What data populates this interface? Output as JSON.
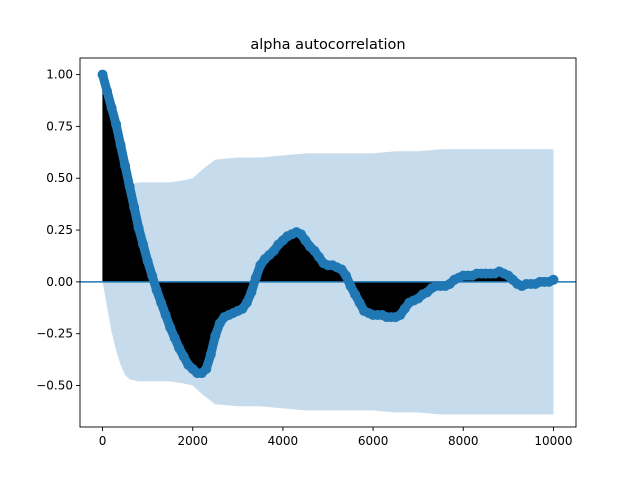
{
  "chart_data": {
    "type": "line",
    "title": "alpha autocorrelation",
    "xlabel": "",
    "ylabel": "",
    "xlim": [
      -500,
      10500
    ],
    "ylim": [
      -0.7,
      1.08
    ],
    "xticks": [
      0,
      2000,
      4000,
      6000,
      8000,
      10000
    ],
    "xtick_labels": [
      "0",
      "2000",
      "4000",
      "6000",
      "8000",
      "10000"
    ],
    "yticks": [
      -0.5,
      -0.25,
      0.0,
      0.25,
      0.5,
      0.75,
      1.0
    ],
    "ytick_labels": [
      "−0.50",
      "−0.25",
      "0.00",
      "0.25",
      "0.50",
      "0.75",
      "1.00"
    ],
    "grid": false,
    "colors": {
      "acf_marker": "#1f77b4",
      "zero_line": "#1f77b4",
      "confidence_band": "#c6dbec",
      "stems": "#000000"
    },
    "acf": {
      "x": [
        0,
        100,
        200,
        300,
        400,
        500,
        600,
        700,
        800,
        900,
        1000,
        1100,
        1200,
        1300,
        1400,
        1500,
        1600,
        1700,
        1800,
        1900,
        2000,
        2100,
        2200,
        2300,
        2400,
        2500,
        2600,
        2700,
        2800,
        2900,
        3000,
        3100,
        3200,
        3300,
        3400,
        3500,
        3600,
        3700,
        3800,
        3900,
        4000,
        4100,
        4200,
        4300,
        4400,
        4500,
        4600,
        4700,
        4800,
        4900,
        5000,
        5100,
        5200,
        5300,
        5400,
        5500,
        5600,
        5700,
        5800,
        5900,
        6000,
        6100,
        6200,
        6300,
        6400,
        6500,
        6600,
        6700,
        6800,
        6900,
        7000,
        7100,
        7200,
        7300,
        7400,
        7500,
        7600,
        7700,
        7800,
        7900,
        8000,
        8100,
        8200,
        8300,
        8400,
        8500,
        8600,
        8700,
        8800,
        8900,
        9000,
        9100,
        9200,
        9300,
        9400,
        9500,
        9600,
        9700,
        9800,
        9900,
        10000
      ],
      "values": [
        1.0,
        0.92,
        0.84,
        0.76,
        0.66,
        0.56,
        0.46,
        0.36,
        0.26,
        0.18,
        0.1,
        0.03,
        -0.04,
        -0.1,
        -0.16,
        -0.22,
        -0.27,
        -0.32,
        -0.36,
        -0.4,
        -0.42,
        -0.44,
        -0.44,
        -0.42,
        -0.35,
        -0.26,
        -0.2,
        -0.17,
        -0.16,
        -0.15,
        -0.14,
        -0.13,
        -0.1,
        -0.05,
        0.02,
        0.08,
        0.11,
        0.13,
        0.15,
        0.18,
        0.2,
        0.22,
        0.23,
        0.24,
        0.23,
        0.2,
        0.17,
        0.15,
        0.12,
        0.09,
        0.08,
        0.08,
        0.07,
        0.06,
        0.03,
        -0.02,
        -0.06,
        -0.1,
        -0.14,
        -0.15,
        -0.16,
        -0.16,
        -0.16,
        -0.17,
        -0.17,
        -0.17,
        -0.16,
        -0.13,
        -0.1,
        -0.09,
        -0.08,
        -0.06,
        -0.05,
        -0.03,
        -0.02,
        -0.02,
        -0.02,
        -0.01,
        0.01,
        0.02,
        0.03,
        0.03,
        0.03,
        0.04,
        0.04,
        0.04,
        0.04,
        0.04,
        0.05,
        0.04,
        0.03,
        0.01,
        -0.01,
        -0.02,
        -0.01,
        -0.01,
        -0.01,
        0.0,
        0.0,
        0.0,
        0.01
      ]
    },
    "confidence_band": {
      "x": [
        0,
        100,
        200,
        300,
        400,
        500,
        600,
        800,
        1000,
        1200,
        1500,
        1800,
        2000,
        2200,
        2500,
        3000,
        3500,
        4000,
        4500,
        5000,
        5500,
        6000,
        6500,
        7000,
        7500,
        8000,
        8500,
        9000,
        9500,
        10000
      ],
      "upper": [
        0.0,
        0.12,
        0.24,
        0.33,
        0.4,
        0.45,
        0.47,
        0.48,
        0.48,
        0.48,
        0.48,
        0.49,
        0.5,
        0.54,
        0.59,
        0.6,
        0.6,
        0.61,
        0.62,
        0.62,
        0.62,
        0.62,
        0.63,
        0.63,
        0.64,
        0.64,
        0.64,
        0.64,
        0.64,
        0.64
      ],
      "lower": [
        0.0,
        -0.12,
        -0.24,
        -0.33,
        -0.4,
        -0.45,
        -0.47,
        -0.48,
        -0.48,
        -0.48,
        -0.48,
        -0.49,
        -0.5,
        -0.54,
        -0.59,
        -0.6,
        -0.6,
        -0.61,
        -0.62,
        -0.62,
        -0.62,
        -0.62,
        -0.63,
        -0.63,
        -0.64,
        -0.64,
        -0.64,
        -0.64,
        -0.64,
        -0.64
      ]
    }
  }
}
